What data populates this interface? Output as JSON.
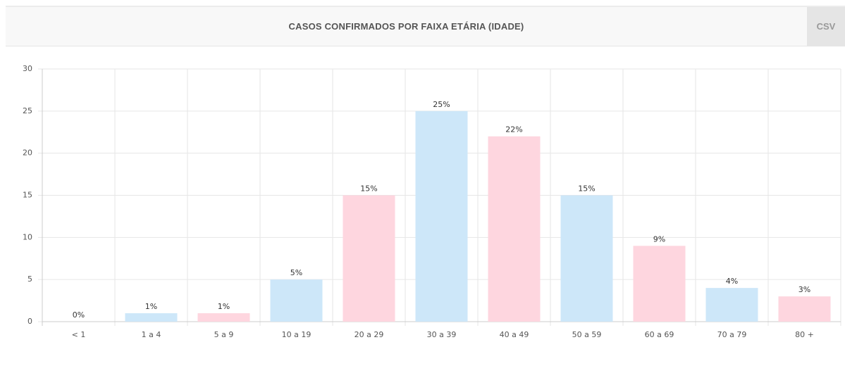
{
  "header": {
    "title": "CASOS CONFIRMADOS POR FAIXA ETÁRIA (IDADE)",
    "button": "CSV"
  },
  "chart_data": {
    "type": "bar",
    "categories": [
      "< 1",
      "1 a 4",
      "5 a 9",
      "10 a 19",
      "20 a 29",
      "30 a 39",
      "40 a 49",
      "50 a 59",
      "60 a 69",
      "70 a 79",
      "80 +"
    ],
    "values": [
      0,
      1,
      1,
      5,
      15,
      25,
      22,
      15,
      9,
      4,
      3
    ],
    "value_labels": [
      "0%",
      "1%",
      "1%",
      "5%",
      "15%",
      "25%",
      "22%",
      "15%",
      "9%",
      "4%",
      "3%"
    ],
    "colors": [
      "#cde7f9",
      "#cde7f9",
      "#fed6df",
      "#cde7f9",
      "#fed6df",
      "#cde7f9",
      "#fed6df",
      "#cde7f9",
      "#fed6df",
      "#cde7f9",
      "#fed6df"
    ],
    "ylim": [
      0,
      30
    ],
    "yticks": [
      0,
      5,
      10,
      15,
      20,
      25,
      30
    ],
    "grid": true
  }
}
